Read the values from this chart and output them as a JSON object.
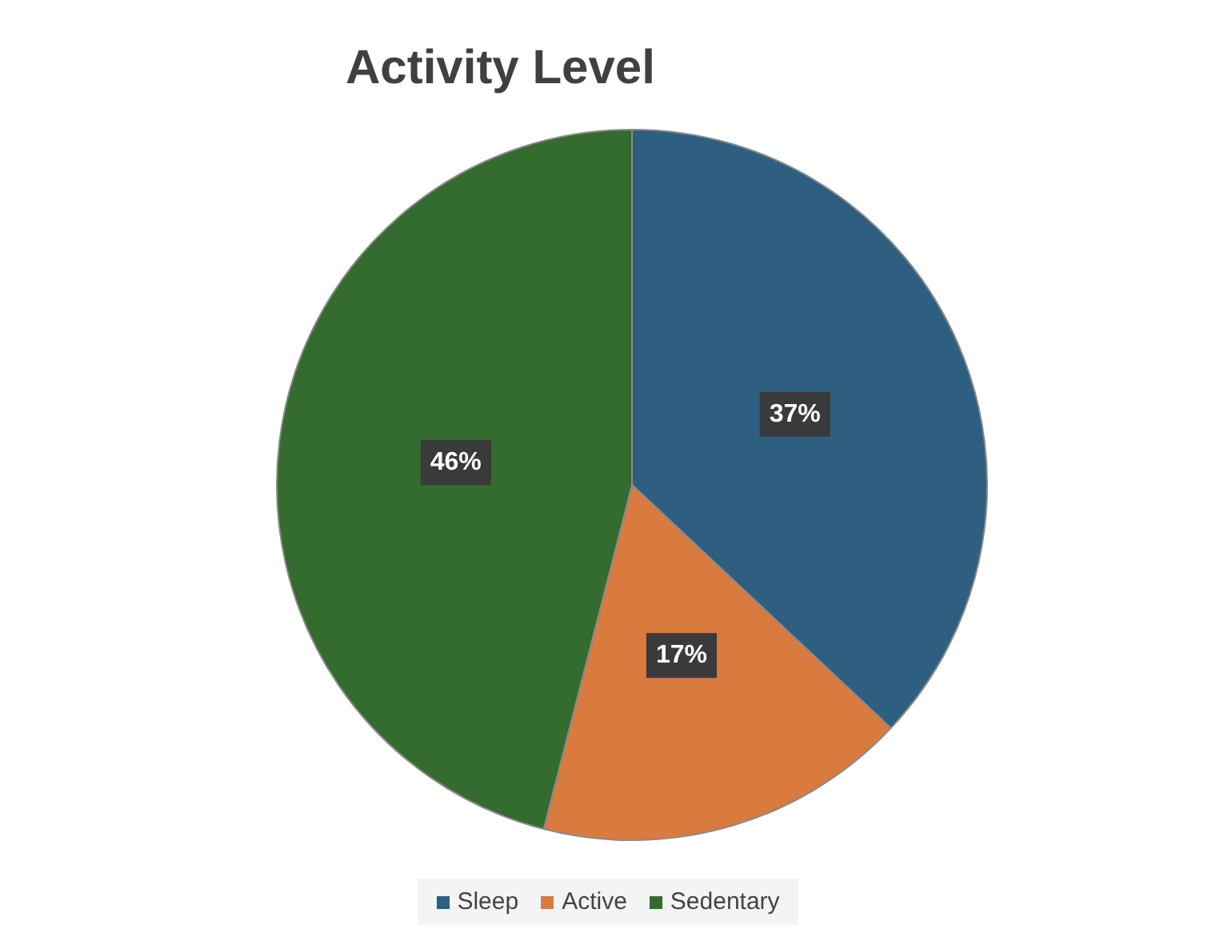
{
  "chart_data": {
    "type": "pie",
    "title": "Activity Level",
    "categories": [
      "Sleep",
      "Active",
      "Sedentary"
    ],
    "values": [
      37,
      17,
      46
    ],
    "colors": [
      "#2e5f80",
      "#d97a3f",
      "#346b2e"
    ],
    "value_labels": [
      "37%",
      "17%",
      "46%"
    ],
    "legend": "bottom"
  }
}
